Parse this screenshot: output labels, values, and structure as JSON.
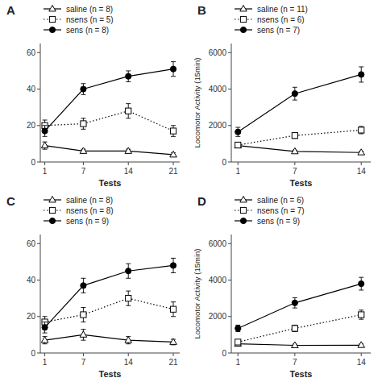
{
  "chart_data": [
    {
      "type": "line",
      "title": "A",
      "xlabel": "Tests",
      "x": [
        1,
        7,
        14,
        21
      ],
      "xlim": [
        0.3,
        22
      ],
      "xticks": [
        1,
        7,
        14,
        21
      ],
      "ylim": [
        0,
        65
      ],
      "yticks": [
        0,
        20,
        40,
        60
      ],
      "grid": false,
      "legend": "top-left",
      "series": [
        {
          "name": "saline (n = 8)",
          "color": "black",
          "marker": "triangle-open",
          "line_style": "solid",
          "values": [
            9,
            6,
            6,
            4
          ],
          "errors": [
            2,
            1,
            1,
            1
          ]
        },
        {
          "name": "nsens (n = 5)",
          "color": "black",
          "marker": "square-open",
          "line_style": "dotted",
          "values": [
            20,
            21,
            28,
            17
          ],
          "errors": [
            3,
            3,
            4,
            3
          ]
        },
        {
          "name": "sens (n = 8)",
          "color": "black",
          "marker": "circle",
          "line_style": "solid",
          "values": [
            17,
            40,
            47,
            51
          ],
          "errors": [
            3,
            3,
            3,
            4
          ]
        }
      ]
    },
    {
      "type": "line",
      "title": "B",
      "xlabel": "Tests",
      "ylabel": "Locomotor Activity (15min)",
      "x": [
        1,
        7,
        14
      ],
      "xlim": [
        0.3,
        15
      ],
      "xticks": [
        1,
        7,
        14
      ],
      "ylim": [
        0,
        6500
      ],
      "yticks": [
        0,
        2000,
        4000,
        6000
      ],
      "grid": false,
      "legend": "top-left",
      "series": [
        {
          "name": "saline (n = 11)",
          "color": "black",
          "marker": "triangle-open",
          "line_style": "solid",
          "values": [
            900,
            580,
            520
          ],
          "errors": [
            100,
            70,
            70
          ]
        },
        {
          "name": "nsens (n = 6)",
          "color": "black",
          "marker": "square-open",
          "line_style": "dotted",
          "values": [
            930,
            1450,
            1750
          ],
          "errors": [
            120,
            150,
            200
          ]
        },
        {
          "name": "sens (n = 7)",
          "color": "black",
          "marker": "circle",
          "line_style": "solid",
          "values": [
            1650,
            3750,
            4800
          ],
          "errors": [
            250,
            350,
            420
          ]
        }
      ]
    },
    {
      "type": "line",
      "title": "C",
      "xlabel": "Tests",
      "x": [
        1,
        7,
        14,
        21
      ],
      "xlim": [
        0.3,
        22
      ],
      "xticks": [
        1,
        7,
        14,
        21
      ],
      "ylim": [
        0,
        65
      ],
      "yticks": [
        0,
        20,
        40,
        60
      ],
      "grid": false,
      "legend": "top-left",
      "series": [
        {
          "name": "saline (n = 8)",
          "color": "black",
          "marker": "triangle-open",
          "line_style": "solid",
          "values": [
            7,
            10,
            7,
            6
          ],
          "errors": [
            2,
            3,
            2,
            1.5
          ]
        },
        {
          "name": "nsens (n = 8)",
          "color": "black",
          "marker": "square-open",
          "line_style": "dotted",
          "values": [
            17,
            21,
            30,
            24
          ],
          "errors": [
            3,
            4,
            4,
            4
          ]
        },
        {
          "name": "sens (n = 9)",
          "color": "black",
          "marker": "circle",
          "line_style": "solid",
          "values": [
            14,
            37,
            45,
            48
          ],
          "errors": [
            3,
            4,
            4,
            4
          ]
        }
      ]
    },
    {
      "type": "line",
      "title": "D",
      "xlabel": "Tests",
      "ylabel": "Locomotor Activity (15min)",
      "x": [
        1,
        7,
        14
      ],
      "xlim": [
        0.3,
        15
      ],
      "xticks": [
        1,
        7,
        14
      ],
      "ylim": [
        0,
        6500
      ],
      "yticks": [
        0,
        2000,
        4000,
        6000
      ],
      "grid": false,
      "legend": "top-left",
      "series": [
        {
          "name": "saline (n = 6)",
          "color": "black",
          "marker": "triangle-open",
          "line_style": "solid",
          "values": [
            500,
            420,
            430
          ],
          "errors": [
            80,
            60,
            60
          ]
        },
        {
          "name": "nsens (n = 7)",
          "color": "black",
          "marker": "square-open",
          "line_style": "dotted",
          "values": [
            600,
            1350,
            2100
          ],
          "errors": [
            100,
            180,
            250
          ]
        },
        {
          "name": "sens (n = 9)",
          "color": "black",
          "marker": "circle",
          "line_style": "solid",
          "values": [
            1350,
            2750,
            3800
          ],
          "errors": [
            180,
            280,
            350
          ]
        }
      ]
    }
  ]
}
